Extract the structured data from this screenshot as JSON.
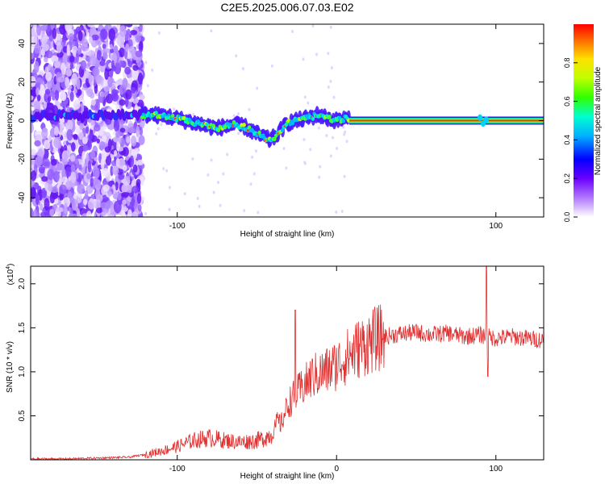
{
  "title": "C2E5.2025.006.07.03.E02",
  "chart_data": [
    {
      "type": "heatmap",
      "title": "C2E5.2025.006.07.03.E02",
      "xlabel": "Height of straight line (km)",
      "ylabel": "Frequency (Hz)",
      "xlim": [
        -192,
        130
      ],
      "ylim": [
        -50,
        50
      ],
      "xticks": [
        -100,
        100
      ],
      "yticks": [
        -40,
        -20,
        0,
        20,
        40
      ],
      "colorbar": {
        "label": "Normalized spectral amplitude",
        "range": [
          0,
          1
        ],
        "ticks": [
          "0.0",
          "0.2",
          "0.4",
          "0.6",
          "0.8"
        ],
        "colors": [
          "#ffffff",
          "#c090ff",
          "#6a00ff",
          "#0000ff",
          "#00b0ff",
          "#00ffd0",
          "#30ff00",
          "#c0ff00",
          "#ffe000",
          "#ff8000",
          "#ff0000"
        ]
      },
      "ridge": {
        "x": [
          -192,
          -180,
          -160,
          -140,
          -125,
          -115,
          -105,
          -95,
          -85,
          -75,
          -65,
          -58,
          -52,
          -47,
          -42,
          -38,
          -34,
          -30,
          -25,
          -20,
          -15,
          -12,
          -8,
          -5,
          0,
          5,
          10,
          130
        ],
        "freq": [
          2,
          3,
          2,
          3,
          3,
          3,
          2,
          0,
          -2,
          -4,
          -2,
          -3,
          -6,
          -8,
          -10,
          -8,
          -4,
          -1,
          0,
          1,
          2,
          3,
          2,
          1,
          0,
          1,
          0,
          0
        ],
        "strong_from_x": 8,
        "noise_until_x": -122
      },
      "line_color": "#e03030"
    },
    {
      "type": "line",
      "xlabel": "Height of straight line (km)",
      "ylabel": "SNR (10 * v/v)",
      "multiplier_label": "(x10",
      "multiplier_exp": "4",
      "xlim": [
        -192,
        130
      ],
      "ylim": [
        0,
        2.2
      ],
      "xticks": [
        -100,
        0,
        100
      ],
      "yticks": [
        "0.5",
        "1.0",
        "1.5",
        "2.0"
      ],
      "series": [
        {
          "name": "SNR",
          "color": "#e03030",
          "x": [
            -192,
            -170,
            -150,
            -130,
            -120,
            -110,
            -100,
            -90,
            -80,
            -70,
            -60,
            -50,
            -45,
            -40,
            -37,
            -35,
            -33,
            -30,
            -25,
            -20,
            -15,
            -10,
            -5,
            0,
            5,
            10,
            15,
            20,
            25,
            30,
            40,
            50,
            60,
            70,
            80,
            90,
            100,
            110,
            120,
            130
          ],
          "values": [
            0.01,
            0.01,
            0.02,
            0.03,
            0.06,
            0.1,
            0.15,
            0.22,
            0.25,
            0.22,
            0.2,
            0.22,
            0.25,
            0.3,
            0.45,
            0.4,
            0.5,
            0.65,
            0.75,
            0.85,
            0.95,
            0.98,
            1.02,
            1.08,
            1.15,
            1.22,
            1.28,
            1.33,
            1.37,
            1.4,
            1.43,
            1.45,
            1.42,
            1.44,
            1.4,
            1.42,
            1.38,
            1.4,
            1.38,
            1.36
          ],
          "peaks": [
            {
              "x": -26,
              "value": 1.7
            },
            {
              "x": 94,
              "value": 2.2
            },
            {
              "x": 95,
              "value": 0.95
            }
          ]
        }
      ]
    }
  ]
}
